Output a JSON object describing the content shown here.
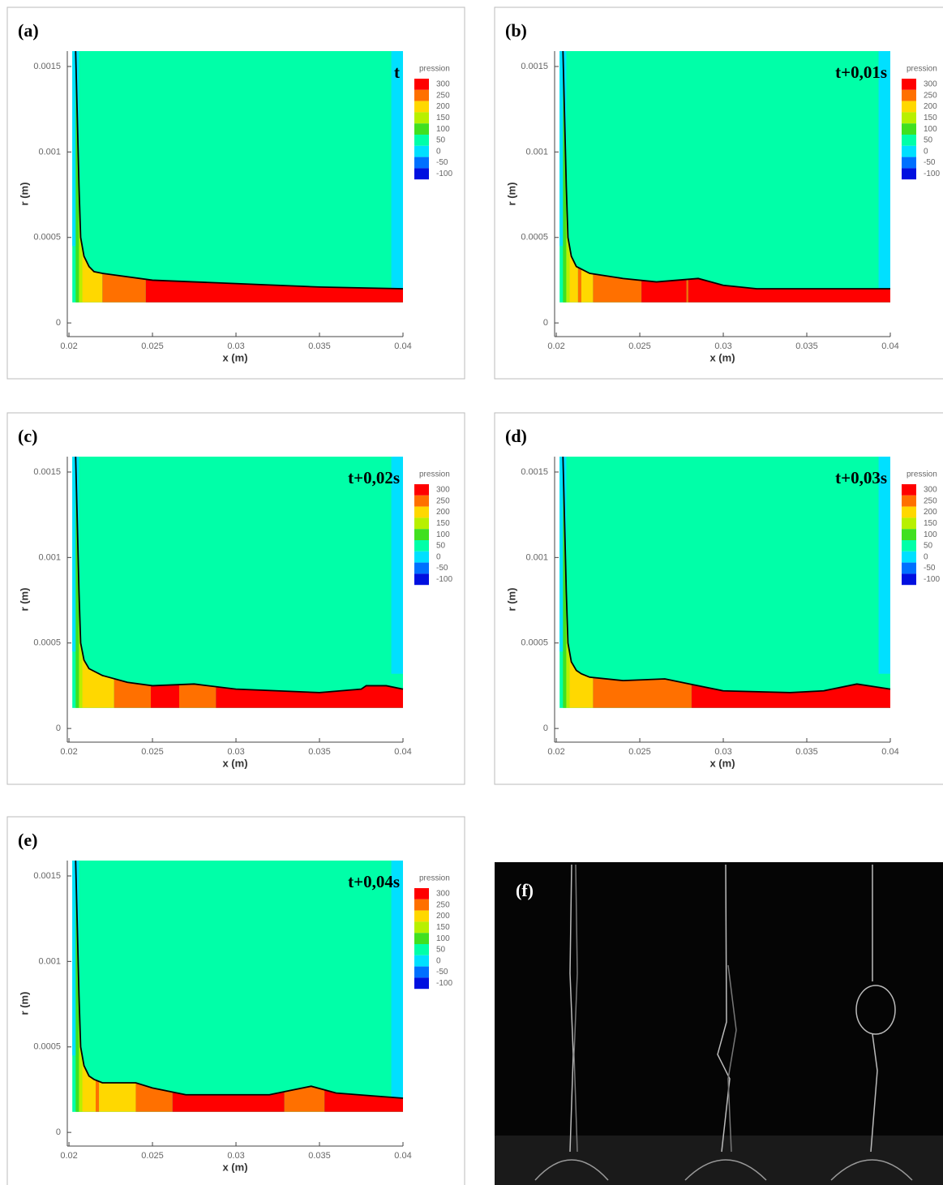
{
  "chart_data": [
    {
      "type": "contour",
      "panel_label": "(a)",
      "annotation": "t",
      "x_label": "x (m)",
      "y_label": "r (m)",
      "xlim": [
        0.0199,
        0.04
      ],
      "ylim": [
        -8e-05,
        0.00159
      ],
      "xticks": [
        0.02,
        0.025,
        0.03,
        0.035,
        0.04
      ],
      "yticks": [
        0,
        0.0005,
        0.001,
        0.0015
      ],
      "legend_title": "pression",
      "levels": [
        300,
        250,
        200,
        150,
        100,
        50,
        0,
        -50,
        -100
      ],
      "level_colors": [
        "#ff0000",
        "#ff7000",
        "#ffd800",
        "#b8f000",
        "#40e020",
        "#00ffa8",
        "#00e0ff",
        "#0070ff",
        "#0010e0"
      ],
      "regions": [
        {
          "x": [
            0.0202,
            0.04
          ],
          "r": [
            0.00012,
            0.00159
          ],
          "value": 50
        },
        {
          "x": [
            0.0202,
            0.0206
          ],
          "r": [
            0.00045,
            0.00159
          ],
          "value": 0
        },
        {
          "x": [
            0.0393,
            0.04
          ],
          "r": [
            0.0002,
            0.00159
          ],
          "value": 0
        }
      ],
      "film": [
        {
          "x": [
            0.0202,
            0.0206
          ],
          "value": 100
        },
        {
          "x": [
            0.0206,
            0.0208
          ],
          "value": 150
        },
        {
          "x": [
            0.0208,
            0.022
          ],
          "value": 200
        },
        {
          "x": [
            0.022,
            0.0246
          ],
          "value": 250
        },
        {
          "x": [
            0.0246,
            0.04
          ],
          "value": 300
        }
      ],
      "interface": {
        "x": [
          0.0204,
          0.0205,
          0.0206,
          0.0207,
          0.0209,
          0.0212,
          0.0215,
          0.022,
          0.025,
          0.03,
          0.035,
          0.04
        ],
        "r": [
          0.00159,
          0.0012,
          0.0008,
          0.0005,
          0.00039,
          0.00033,
          0.0003,
          0.00029,
          0.00025,
          0.00023,
          0.00021,
          0.0002
        ]
      }
    },
    {
      "type": "contour",
      "panel_label": "(b)",
      "annotation": "t+0,01s",
      "x_label": "x (m)",
      "y_label": "r (m)",
      "xlim": [
        0.0199,
        0.04
      ],
      "ylim": [
        -8e-05,
        0.00159
      ],
      "xticks": [
        0.02,
        0.025,
        0.03,
        0.035,
        0.04
      ],
      "yticks": [
        0,
        0.0005,
        0.001,
        0.0015
      ],
      "legend_title": "pression",
      "levels": [
        300,
        250,
        200,
        150,
        100,
        50,
        0,
        -50,
        -100
      ],
      "level_colors": [
        "#ff0000",
        "#ff7000",
        "#ffd800",
        "#b8f000",
        "#40e020",
        "#00ffa8",
        "#00e0ff",
        "#0070ff",
        "#0010e0"
      ],
      "regions": [
        {
          "x": [
            0.0202,
            0.04
          ],
          "r": [
            0.00012,
            0.00159
          ],
          "value": 50
        },
        {
          "x": [
            0.0202,
            0.0206
          ],
          "r": [
            0.00045,
            0.00159
          ],
          "value": 0
        },
        {
          "x": [
            0.0393,
            0.04
          ],
          "r": [
            0.0002,
            0.00159
          ],
          "value": 0
        }
      ],
      "film": [
        {
          "x": [
            0.0202,
            0.0206
          ],
          "value": 100
        },
        {
          "x": [
            0.0206,
            0.0208
          ],
          "value": 150
        },
        {
          "x": [
            0.0208,
            0.0213
          ],
          "value": 200
        },
        {
          "x": [
            0.0213,
            0.0215
          ],
          "value": 250
        },
        {
          "x": [
            0.0215,
            0.0222
          ],
          "value": 200
        },
        {
          "x": [
            0.0222,
            0.0251
          ],
          "value": 250
        },
        {
          "x": [
            0.0251,
            0.0278
          ],
          "value": 300
        },
        {
          "x": [
            0.0278,
            0.0279
          ],
          "value": 250
        },
        {
          "x": [
            0.0279,
            0.04
          ],
          "value": 300
        }
      ],
      "interface": {
        "x": [
          0.0204,
          0.0205,
          0.0206,
          0.0207,
          0.0209,
          0.0212,
          0.022,
          0.024,
          0.026,
          0.0285,
          0.03,
          0.032,
          0.036,
          0.04
        ],
        "r": [
          0.00159,
          0.0012,
          0.0008,
          0.0005,
          0.00039,
          0.00033,
          0.00029,
          0.00026,
          0.00024,
          0.00026,
          0.00022,
          0.0002,
          0.0002,
          0.0002
        ]
      }
    },
    {
      "type": "contour",
      "panel_label": "(c)",
      "annotation": "t+0,02s",
      "x_label": "x (m)",
      "y_label": "r (m)",
      "xlim": [
        0.0199,
        0.04
      ],
      "ylim": [
        -8e-05,
        0.00159
      ],
      "xticks": [
        0.02,
        0.025,
        0.03,
        0.035,
        0.04
      ],
      "yticks": [
        0,
        0.0005,
        0.001,
        0.0015
      ],
      "legend_title": "pression",
      "levels": [
        300,
        250,
        200,
        150,
        100,
        50,
        0,
        -50,
        -100
      ],
      "level_colors": [
        "#ff0000",
        "#ff7000",
        "#ffd800",
        "#b8f000",
        "#40e020",
        "#00ffa8",
        "#00e0ff",
        "#0070ff",
        "#0010e0"
      ],
      "regions": [
        {
          "x": [
            0.0202,
            0.04
          ],
          "r": [
            0.00012,
            0.00159
          ],
          "value": 50
        },
        {
          "x": [
            0.0202,
            0.0206
          ],
          "r": [
            0.00045,
            0.00159
          ],
          "value": 0
        },
        {
          "x": [
            0.0393,
            0.04
          ],
          "r": [
            0.00032,
            0.00159
          ],
          "value": 0
        }
      ],
      "film": [
        {
          "x": [
            0.0202,
            0.0206
          ],
          "value": 100
        },
        {
          "x": [
            0.0206,
            0.0208
          ],
          "value": 150
        },
        {
          "x": [
            0.0208,
            0.0227
          ],
          "value": 200
        },
        {
          "x": [
            0.0227,
            0.0249
          ],
          "value": 250
        },
        {
          "x": [
            0.0249,
            0.0266
          ],
          "value": 300
        },
        {
          "x": [
            0.0266,
            0.0288
          ],
          "value": 250
        },
        {
          "x": [
            0.0288,
            0.04
          ],
          "value": 300
        }
      ],
      "interface": {
        "x": [
          0.0204,
          0.0205,
          0.0206,
          0.0207,
          0.0209,
          0.0212,
          0.022,
          0.0235,
          0.025,
          0.0275,
          0.03,
          0.035,
          0.0375,
          0.0378,
          0.039,
          0.04
        ],
        "r": [
          0.00159,
          0.0012,
          0.0008,
          0.0005,
          0.0004,
          0.00035,
          0.00031,
          0.00027,
          0.00025,
          0.00026,
          0.00023,
          0.00021,
          0.00023,
          0.00025,
          0.00025,
          0.00023
        ]
      }
    },
    {
      "type": "contour",
      "panel_label": "(d)",
      "annotation": "t+0,03s",
      "x_label": "x (m)",
      "y_label": "r (m)",
      "xlim": [
        0.0199,
        0.04
      ],
      "ylim": [
        -8e-05,
        0.00159
      ],
      "xticks": [
        0.02,
        0.025,
        0.03,
        0.035,
        0.04
      ],
      "yticks": [
        0,
        0.0005,
        0.001,
        0.0015
      ],
      "legend_title": "pression",
      "levels": [
        300,
        250,
        200,
        150,
        100,
        50,
        0,
        -50,
        -100
      ],
      "level_colors": [
        "#ff0000",
        "#ff7000",
        "#ffd800",
        "#b8f000",
        "#40e020",
        "#00ffa8",
        "#00e0ff",
        "#0070ff",
        "#0010e0"
      ],
      "regions": [
        {
          "x": [
            0.0202,
            0.04
          ],
          "r": [
            0.00012,
            0.00159
          ],
          "value": 50
        },
        {
          "x": [
            0.0202,
            0.0206
          ],
          "r": [
            0.00045,
            0.00159
          ],
          "value": 0
        },
        {
          "x": [
            0.0393,
            0.04
          ],
          "r": [
            0.00032,
            0.00159
          ],
          "value": 0
        }
      ],
      "film": [
        {
          "x": [
            0.0202,
            0.0206
          ],
          "value": 100
        },
        {
          "x": [
            0.0206,
            0.0208
          ],
          "value": 150
        },
        {
          "x": [
            0.0208,
            0.0222
          ],
          "value": 200
        },
        {
          "x": [
            0.0222,
            0.0281
          ],
          "value": 250
        },
        {
          "x": [
            0.0281,
            0.04
          ],
          "value": 300
        }
      ],
      "interface": {
        "x": [
          0.0204,
          0.0205,
          0.0206,
          0.0207,
          0.0209,
          0.0212,
          0.0215,
          0.022,
          0.024,
          0.0265,
          0.028,
          0.03,
          0.034,
          0.036,
          0.038,
          0.04
        ],
        "r": [
          0.00159,
          0.0012,
          0.0008,
          0.0005,
          0.00039,
          0.00034,
          0.00032,
          0.0003,
          0.00028,
          0.00029,
          0.00026,
          0.00022,
          0.00021,
          0.00022,
          0.00026,
          0.00023
        ]
      }
    },
    {
      "type": "contour",
      "panel_label": "(e)",
      "annotation": "t+0,04s",
      "x_label": "x (m)",
      "y_label": "r (m)",
      "xlim": [
        0.0199,
        0.04
      ],
      "ylim": [
        -8e-05,
        0.00159
      ],
      "xticks": [
        0.02,
        0.025,
        0.03,
        0.035,
        0.04
      ],
      "yticks": [
        0,
        0.0005,
        0.001,
        0.0015
      ],
      "legend_title": "pression",
      "levels": [
        300,
        250,
        200,
        150,
        100,
        50,
        0,
        -50,
        -100
      ],
      "level_colors": [
        "#ff0000",
        "#ff7000",
        "#ffd800",
        "#b8f000",
        "#40e020",
        "#00ffa8",
        "#00e0ff",
        "#0070ff",
        "#0010e0"
      ],
      "regions": [
        {
          "x": [
            0.0202,
            0.04
          ],
          "r": [
            0.00012,
            0.00159
          ],
          "value": 50
        },
        {
          "x": [
            0.0202,
            0.0206
          ],
          "r": [
            0.00045,
            0.00159
          ],
          "value": 0
        },
        {
          "x": [
            0.0393,
            0.04
          ],
          "r": [
            0.0002,
            0.00159
          ],
          "value": 0
        }
      ],
      "film": [
        {
          "x": [
            0.0202,
            0.0206
          ],
          "value": 100
        },
        {
          "x": [
            0.0206,
            0.0208
          ],
          "value": 150
        },
        {
          "x": [
            0.0208,
            0.0216
          ],
          "value": 200
        },
        {
          "x": [
            0.0216,
            0.0218
          ],
          "value": 250
        },
        {
          "x": [
            0.0218,
            0.024
          ],
          "value": 200
        },
        {
          "x": [
            0.024,
            0.0262
          ],
          "value": 250
        },
        {
          "x": [
            0.0262,
            0.0329
          ],
          "value": 300
        },
        {
          "x": [
            0.0329,
            0.0353
          ],
          "value": 250
        },
        {
          "x": [
            0.0353,
            0.04
          ],
          "value": 300
        }
      ],
      "interface": {
        "x": [
          0.0204,
          0.0205,
          0.0206,
          0.0207,
          0.0209,
          0.0212,
          0.0215,
          0.022,
          0.024,
          0.025,
          0.027,
          0.032,
          0.033,
          0.0345,
          0.036,
          0.04
        ],
        "r": [
          0.00159,
          0.0012,
          0.0008,
          0.0005,
          0.00039,
          0.00033,
          0.00031,
          0.00029,
          0.00029,
          0.00026,
          0.00022,
          0.00022,
          0.00024,
          0.00027,
          0.00023,
          0.0002
        ]
      }
    }
  ],
  "photo": {
    "label": "(f)"
  }
}
